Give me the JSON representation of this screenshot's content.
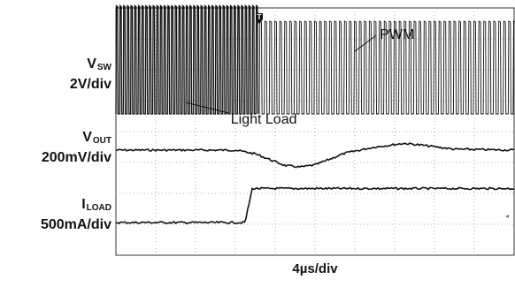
{
  "chart_data": {
    "type": "line",
    "title": "",
    "xlabel": "4µs/div",
    "x_divisions": 10,
    "y_divisions": 8,
    "grid": true,
    "x_range_us": [
      0,
      40
    ],
    "trigger_marker": "T",
    "trigger_time_us": 14.4,
    "channels": [
      {
        "name_main": "V",
        "name_sub": "SW",
        "scale": "2V/div",
        "kind": "switching",
        "segments": [
          {
            "t_start_us": 0,
            "t_end_us": 14.4,
            "period_us": 0.37,
            "high_div": 3.5,
            "low_div": 0.0,
            "mode": "Light Load"
          },
          {
            "t_start_us": 14.4,
            "t_end_us": 40,
            "period_us": 0.5,
            "high_div": 3.0,
            "low_div": 0.0,
            "mode": "PWM"
          }
        ]
      },
      {
        "name_main": "V",
        "name_sub": "OUT",
        "scale": "200mV/div",
        "kind": "analog",
        "points_us_div": [
          [
            0,
            0
          ],
          [
            12,
            0
          ],
          [
            14,
            -0.12
          ],
          [
            17,
            -0.5
          ],
          [
            18.5,
            -0.55
          ],
          [
            20,
            -0.48
          ],
          [
            23,
            -0.1
          ],
          [
            26,
            0.1
          ],
          [
            29,
            0.22
          ],
          [
            31,
            0.15
          ],
          [
            34,
            0.03
          ],
          [
            40,
            0
          ]
        ]
      },
      {
        "name_main": "I",
        "name_sub": "LOAD",
        "scale": "500mA/div",
        "kind": "step",
        "points_us_div": [
          [
            0,
            0
          ],
          [
            13.0,
            0
          ],
          [
            13.1,
            0.2
          ],
          [
            13.7,
            1.1
          ],
          [
            14.0,
            1.1
          ],
          [
            40,
            1.1
          ]
        ]
      }
    ],
    "annotations": [
      {
        "text": "PWM",
        "x_us": 26.5,
        "arrow_to_us": 24.0,
        "channel": 0
      },
      {
        "text": "Light Load",
        "x_us": 11.0,
        "arrow_to_us": 7.0,
        "channel": 0
      }
    ]
  }
}
